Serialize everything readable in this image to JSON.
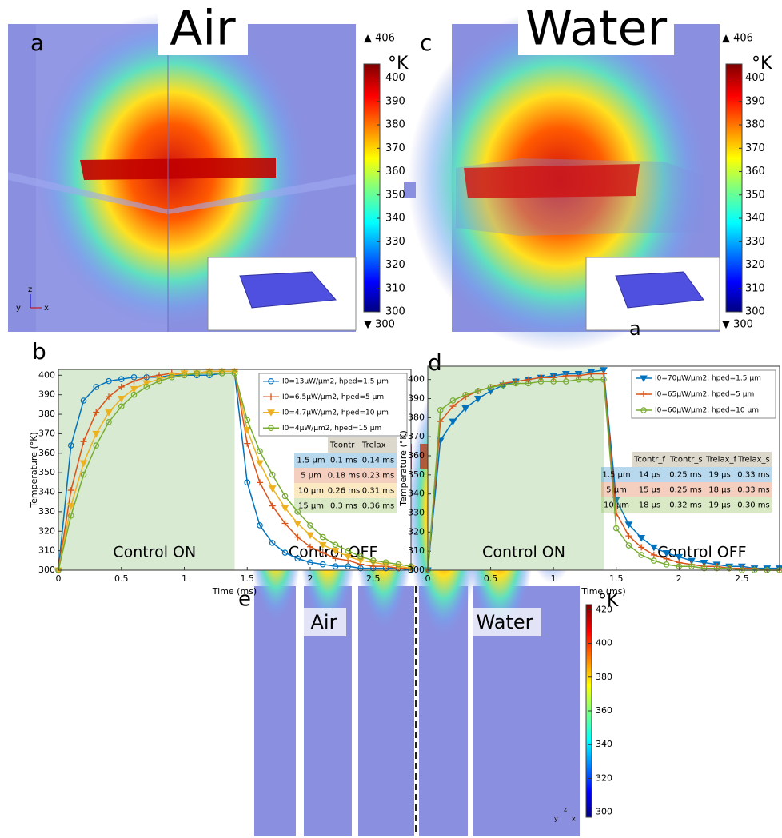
{
  "panel_a": {
    "label": "a",
    "title": "Air",
    "unit": "°K",
    "max_label": "▲ 406",
    "min_label": "▼ 300",
    "triad": [
      "z",
      "y",
      "x"
    ],
    "clim": [
      300,
      406
    ],
    "cticks": [
      300,
      310,
      320,
      330,
      340,
      350,
      360,
      370,
      380,
      390,
      400
    ]
  },
  "panel_c": {
    "label": "c",
    "title": "Water",
    "unit": "°K",
    "max_label": "▲ 406",
    "min_label": "▼ 300",
    "inset_label": "a",
    "clim": [
      300,
      406
    ],
    "cticks": [
      300,
      310,
      320,
      330,
      340,
      350,
      360,
      370,
      380,
      390,
      400
    ]
  },
  "panel_e": {
    "label": "e",
    "titles": [
      "Air",
      "Water"
    ],
    "unit": "°K",
    "triad": [
      "z",
      "y",
      "x"
    ],
    "clim": [
      297,
      423
    ],
    "cticks": [
      300,
      320,
      340,
      360,
      380,
      400,
      420
    ]
  },
  "chart_data": [
    {
      "type": "line",
      "label": "b",
      "xlabel": "Time (ms)",
      "ylabel": "Temperature (°K)",
      "xlim": [
        0,
        2.8
      ],
      "xticks": [
        0,
        0.5,
        1,
        1.5,
        2,
        2.5
      ],
      "ylim": [
        300,
        403
      ],
      "yticks": [
        300,
        310,
        320,
        330,
        340,
        350,
        360,
        370,
        380,
        390,
        400
      ],
      "shaded_xlim": [
        0,
        1.4
      ],
      "annotations": [
        "Control ON",
        "Control OFF"
      ],
      "legend": "upper right",
      "x": [
        0,
        0.1,
        0.2,
        0.3,
        0.4,
        0.5,
        0.6,
        0.7,
        0.8,
        0.9,
        1,
        1.1,
        1.2,
        1.3,
        1.4,
        1.5,
        1.6,
        1.7,
        1.8,
        1.9,
        2,
        2.1,
        2.2,
        2.3,
        2.4,
        2.5,
        2.6,
        2.7,
        2.8
      ],
      "series": [
        {
          "name": "I0=13μW/μm2, hped=1.5 μm",
          "color": "#0072bd",
          "marker": "o",
          "values": [
            300,
            364,
            387,
            394,
            397,
            398,
            399,
            399,
            399,
            400,
            400,
            400,
            400,
            401,
            401,
            345,
            323,
            314,
            309,
            306,
            304,
            303,
            302,
            302,
            301,
            301,
            301,
            301,
            300
          ]
        },
        {
          "name": "I0=6.5μW/μm2, hped=5 μm",
          "color": "#d95319",
          "marker": "+",
          "values": [
            300,
            341,
            366,
            381,
            389,
            394,
            397,
            399,
            400,
            401,
            401,
            401,
            402,
            402,
            402,
            365,
            345,
            333,
            324,
            317,
            312,
            309,
            306,
            305,
            303,
            302,
            302,
            301,
            301
          ]
        },
        {
          "name": "I0=4.7μW/μm2, hped=10 μm",
          "color": "#edb120",
          "marker": "v",
          "values": [
            300,
            333,
            355,
            370,
            381,
            388,
            393,
            396,
            398,
            400,
            401,
            401,
            402,
            402,
            402,
            372,
            355,
            342,
            332,
            324,
            318,
            313,
            310,
            307,
            305,
            304,
            303,
            302,
            301
          ]
        },
        {
          "name": "I0=4μW/μm2, hped=15 μm",
          "color": "#77ac30",
          "marker": "o",
          "values": [
            300,
            328,
            349,
            364,
            376,
            384,
            390,
            394,
            397,
            399,
            400,
            401,
            401,
            401,
            401,
            377,
            361,
            349,
            338,
            330,
            323,
            317,
            313,
            310,
            307,
            305,
            304,
            303,
            302
          ]
        }
      ],
      "table": {
        "header": [
          "Tcontr",
          "Trelax"
        ],
        "rows": [
          [
            "1.5 μm",
            "0.1 ms",
            "0.14 ms"
          ],
          [
            "5 μm",
            "0.18 ms",
            "0.23 ms"
          ],
          [
            "10 μm",
            "0.26 ms",
            "0.31 ms"
          ],
          [
            "15 μm",
            "0.3 ms",
            "0.36 ms"
          ]
        ]
      }
    },
    {
      "type": "line",
      "label": "d",
      "xlabel": "Time (ms)",
      "ylabel": "Temperature (°K)",
      "xlim": [
        0,
        2.8
      ],
      "xticks": [
        0,
        0.5,
        1,
        1.5,
        2,
        2.5
      ],
      "ylim": [
        300,
        407
      ],
      "yticks": [
        300,
        310,
        320,
        330,
        340,
        350,
        360,
        370,
        380,
        390,
        400
      ],
      "shaded_xlim": [
        0,
        1.4
      ],
      "annotations": [
        "Control ON",
        "Control OFF"
      ],
      "legend": "upper right",
      "x": [
        0,
        0.1,
        0.2,
        0.3,
        0.4,
        0.5,
        0.6,
        0.7,
        0.8,
        0.9,
        1,
        1.1,
        1.2,
        1.3,
        1.4,
        1.5,
        1.6,
        1.7,
        1.8,
        1.9,
        2,
        2.1,
        2.2,
        2.3,
        2.4,
        2.5,
        2.6,
        2.7,
        2.8
      ],
      "series": [
        {
          "name": "I0=70μW/μm2, hped=1.5 μm",
          "color": "#0072bd",
          "marker": "v",
          "values": [
            300,
            368,
            378,
            385,
            390,
            394,
            397,
            399,
            400,
            401,
            402,
            403,
            403,
            404,
            405,
            337,
            324,
            317,
            312,
            309,
            307,
            305,
            304,
            303,
            302,
            302,
            301,
            301,
            301
          ]
        },
        {
          "name": "I0=65μW/μm2, hped=5 μm",
          "color": "#d95319",
          "marker": "+",
          "values": [
            300,
            378,
            386,
            391,
            394,
            396,
            398,
            399,
            400,
            401,
            401,
            402,
            402,
            403,
            403,
            330,
            318,
            312,
            308,
            306,
            304,
            303,
            302,
            302,
            301,
            301,
            301,
            300,
            300
          ]
        },
        {
          "name": "I0=60μW/μm2, hped=10 μm",
          "color": "#77ac30",
          "marker": "o",
          "values": [
            300,
            384,
            389,
            392,
            394,
            396,
            397,
            398,
            398,
            399,
            399,
            399,
            400,
            400,
            400,
            322,
            313,
            308,
            305,
            303,
            302,
            302,
            301,
            301,
            301,
            300,
            300,
            300,
            300
          ]
        }
      ],
      "table": {
        "header": [
          "Tcontr_f",
          "Tcontr_s",
          "Trelax_f",
          "Trelax_s"
        ],
        "rows": [
          [
            "1.5 μm",
            "14 μs",
            "0.25 ms",
            "19 μs",
            "0.33 ms"
          ],
          [
            "5 μm",
            "15 μs",
            "0.25 ms",
            "18 μs",
            "0.33 ms"
          ],
          [
            "10 μm",
            "18 μs",
            "0.32 ms",
            "19 μs",
            "0.30 ms"
          ]
        ]
      }
    }
  ]
}
